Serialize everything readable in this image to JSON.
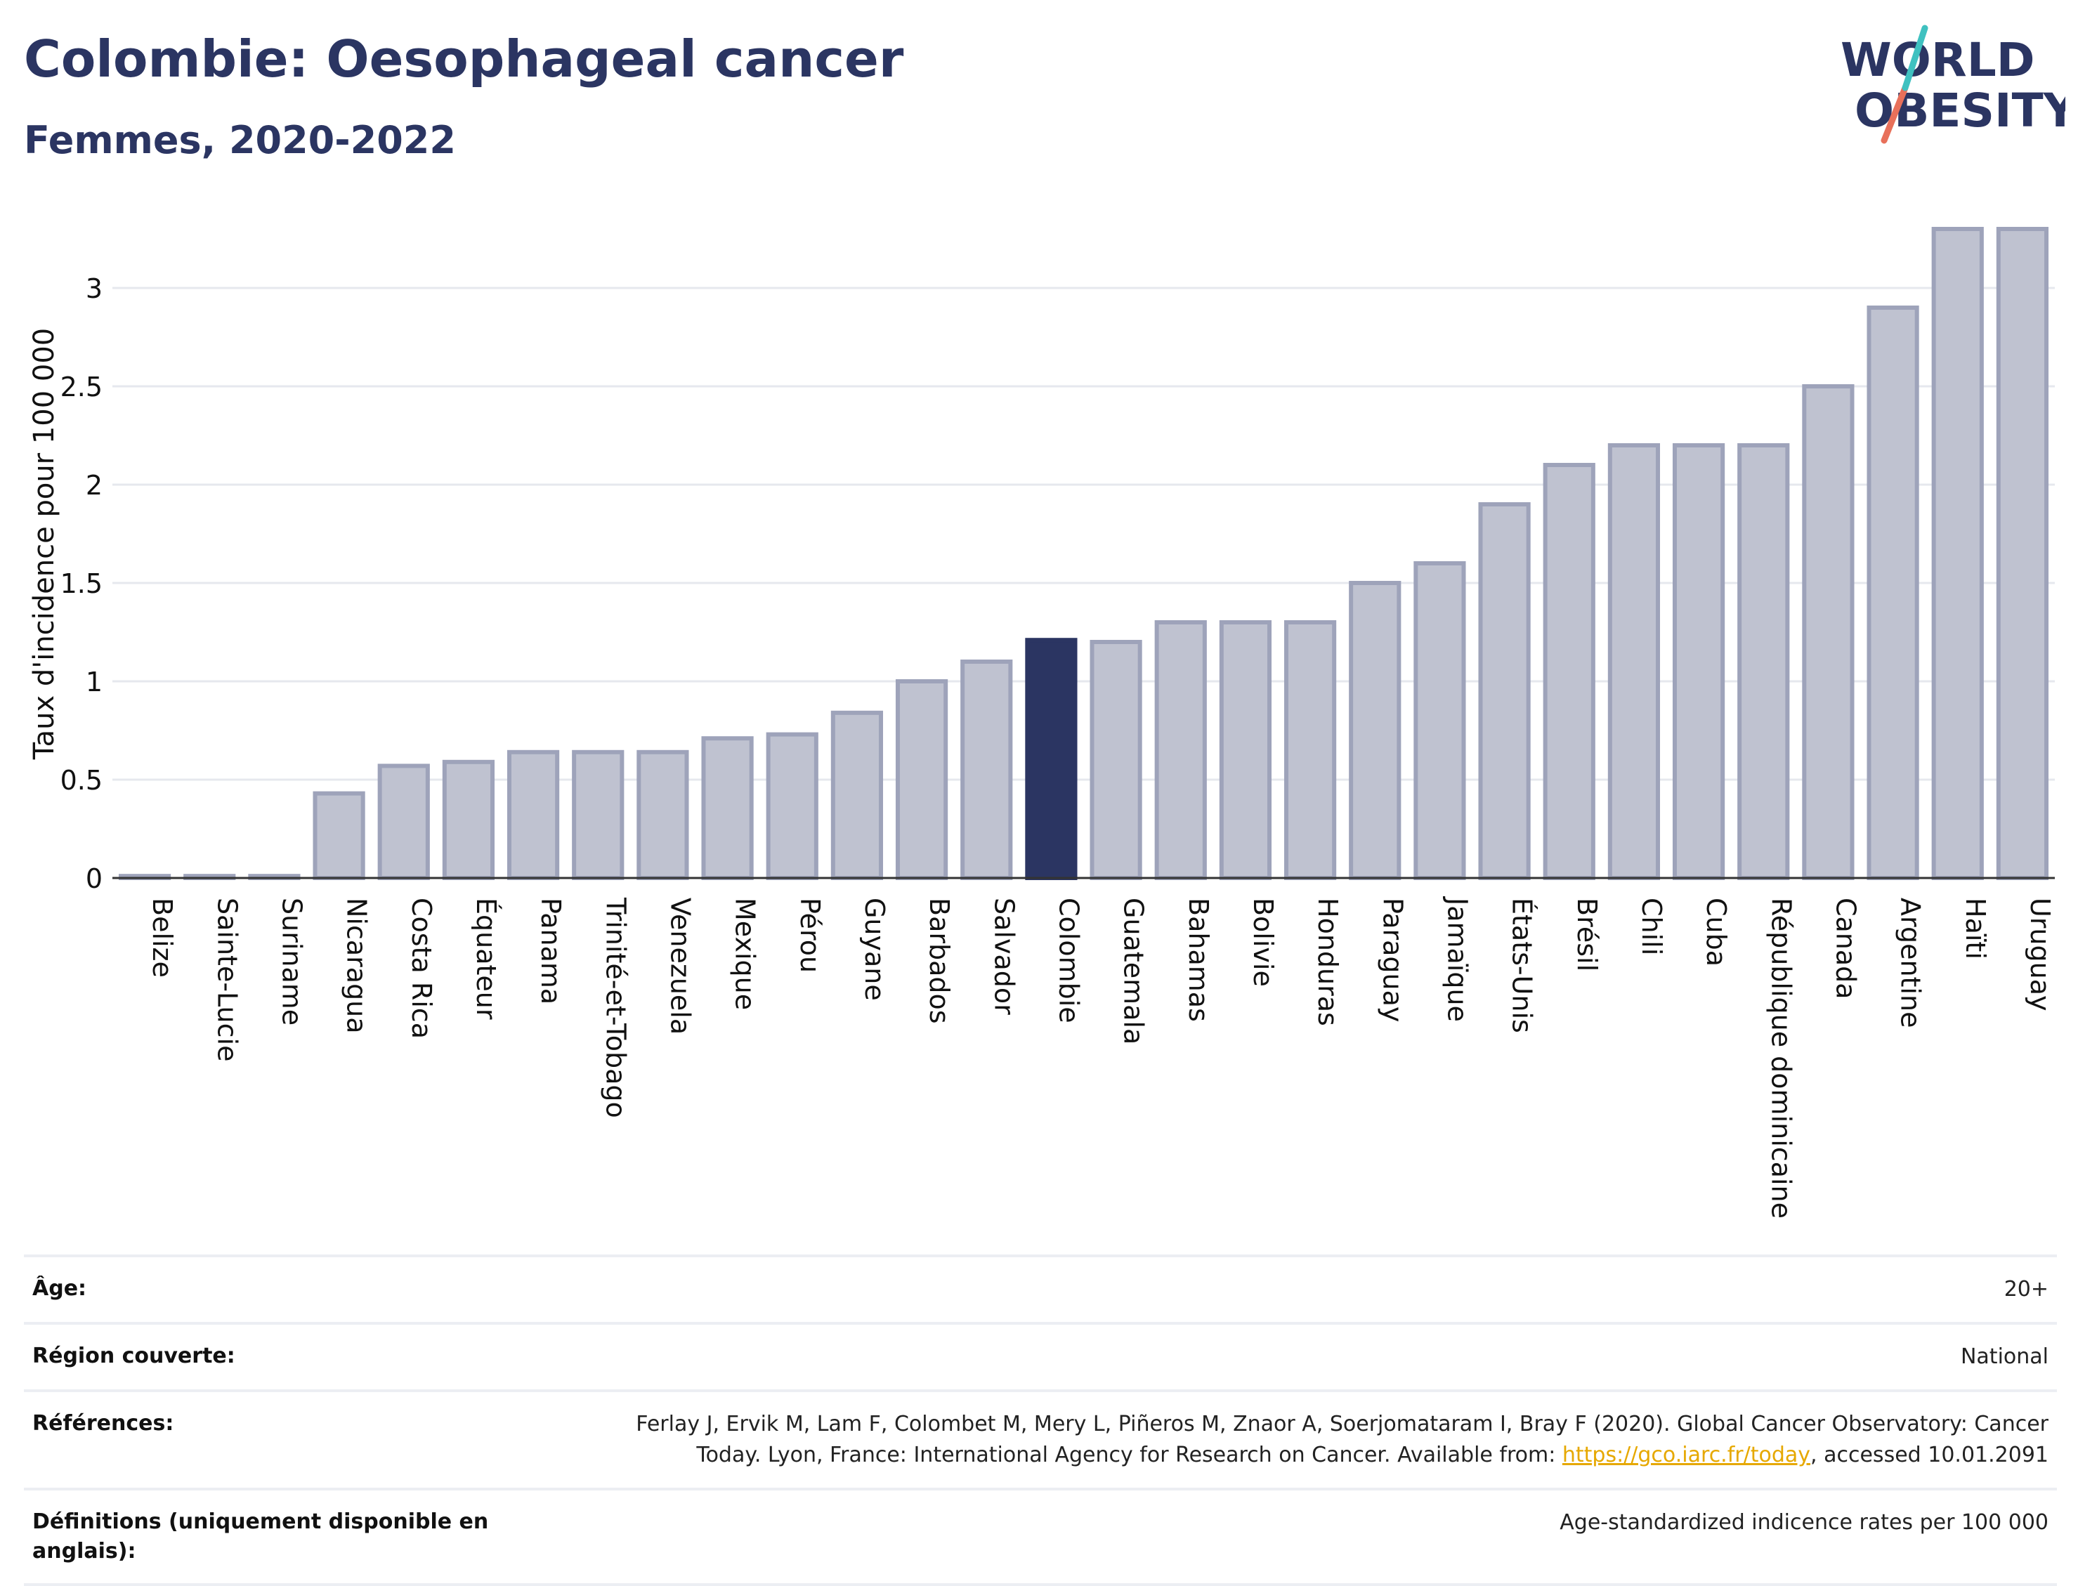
{
  "header": {
    "title": "Colombie: Oesophageal cancer",
    "subtitle": "Femmes, 2020-2022"
  },
  "logo": {
    "line1": "WORLD",
    "line2": "OBESITY"
  },
  "colors": {
    "bar_default": "#bfc2d0",
    "bar_border": "#9ea3ba",
    "bar_highlight": "#2b3562",
    "title": "#2b3562",
    "grid": "#e6e8ee",
    "link": "#e6a800"
  },
  "chart_data": {
    "type": "bar",
    "ylabel": "Taux d'incidence pour 100 000",
    "ylim": [
      0,
      3.4
    ],
    "yticks": [
      0,
      0.5,
      1,
      1.5,
      2,
      2.5,
      3
    ],
    "ytick_labels": [
      "0",
      "0.5",
      "1",
      "1.5",
      "2",
      "2.5",
      "3"
    ],
    "grid": true,
    "highlight": "Colombie",
    "categories": [
      "Belize",
      "Sainte-Lucie",
      "Suriname",
      "Nicaragua",
      "Costa Rica",
      "Équateur",
      "Panama",
      "Trinité-et-Tobago",
      "Venezuela",
      "Mexique",
      "Pérou",
      "Guyane",
      "Barbados",
      "Salvador",
      "Colombie",
      "Guatemala",
      "Bahamas",
      "Bolivie",
      "Honduras",
      "Paraguay",
      "Jamaïque",
      "États-Unis",
      "Brésil",
      "Chili",
      "Cuba",
      "République dominicaine",
      "Canada",
      "Argentine",
      "Haïti",
      "Uruguay"
    ],
    "values": [
      0.01,
      0.01,
      0.01,
      0.43,
      0.57,
      0.59,
      0.64,
      0.64,
      0.64,
      0.71,
      0.73,
      0.84,
      1.0,
      1.1,
      1.21,
      1.2,
      1.3,
      1.3,
      1.3,
      1.5,
      1.6,
      1.9,
      2.1,
      2.2,
      2.2,
      2.2,
      2.5,
      2.9,
      3.3,
      3.3
    ]
  },
  "info": {
    "age_label": "Âge:",
    "age_value": "20+",
    "region_label": "Région couverte:",
    "region_value": "National",
    "refs_label": "Références:",
    "refs_text_1": "Ferlay J, Ervik M, Lam F, Colombet M, Mery L, Piñeros M, Znaor A, Soerjomataram I, Bray F (2020). Global Cancer Observatory: Cancer",
    "refs_text_2": "Today. Lyon, France: International Agency for Research on Cancer. Available from: ",
    "refs_link": "https://gco.iarc.fr/today",
    "refs_text_3": ", accessed 10.01.2091",
    "defs_label": "Définitions (uniquement disponible en anglais):",
    "defs_value": "Age-standardized indicence rates per 100 000"
  }
}
